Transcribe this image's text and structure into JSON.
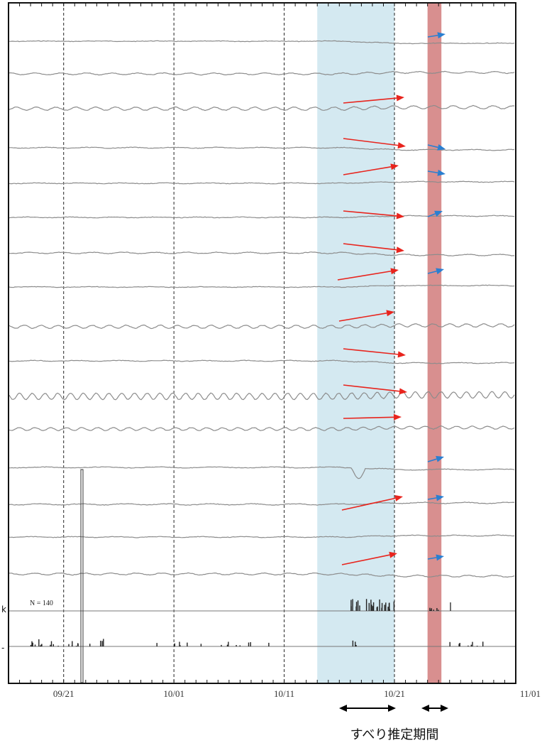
{
  "chart_data": {
    "type": "line",
    "title": "",
    "x_start": "09/16",
    "x_end": "11/01",
    "x_ticks": [
      "09/21",
      "10/01",
      "10/11",
      "10/21",
      "11/01"
    ],
    "x_tick_days": [
      5,
      15,
      25,
      35,
      46
    ],
    "dashed_lines": [
      "09/21",
      "10/01",
      "10/11",
      "10/21"
    ],
    "grid": false,
    "series_count": 16,
    "colors": {
      "trace": "#8c8c8c",
      "red_arrow": "#e8241d",
      "blue_arrow": "#2a7fd1",
      "blue_span": "#d4e9f1",
      "red_span": "#d88f8f",
      "frame": "#111111"
    },
    "highlight_spans": [
      {
        "name": "span-blue",
        "start": "10/14",
        "end": "10/21"
      },
      {
        "name": "span-red",
        "start": "10/24",
        "end": "10/25"
      }
    ],
    "annotation": {
      "text": "N = 140"
    },
    "side_marks": [
      "k",
      "-"
    ],
    "caption": "すべり推定期間"
  }
}
